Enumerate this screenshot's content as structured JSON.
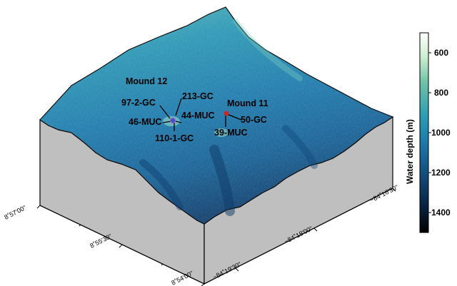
{
  "sites": {
    "mound12": "Mound 12",
    "mound11": "Mound 11",
    "s97_2_gc": "97-2-GC",
    "s213_gc": "213-GC",
    "s44_muc": "44-MUC",
    "s46_muc": "46-MUC",
    "s110_1_gc": "110-1-GC",
    "s50_gc": "50-GC",
    "s39_muc": "39-MUC"
  },
  "latitude_axis": {
    "ticks": [
      "8˚57'00\"",
      "8˚55'30\"",
      "8˚54'00\""
    ]
  },
  "longitude_axis": {
    "ticks": [
      "−84˚19'30\"",
      "−84˚18'00\"",
      "−84˚16'30\""
    ]
  },
  "colorbar": {
    "title": "Water depth (m)",
    "ticks": [
      "600",
      "800",
      "1000",
      "1200",
      "1400"
    ],
    "range": [
      500,
      1500
    ],
    "colors": [
      "#ffffff",
      "#cdeecf",
      "#6ec2a8",
      "#2a9db5",
      "#1a74a6",
      "#124a78",
      "#0a2444",
      "#000000"
    ]
  },
  "markers": {
    "mound12_color": "#3b56c8",
    "mound11_color": "#d42020"
  }
}
